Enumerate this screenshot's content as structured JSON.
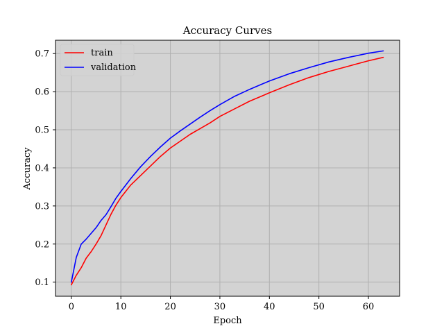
{
  "chart_data": {
    "type": "line",
    "title": "Accuracy Curves",
    "xlabel": "Epoch",
    "ylabel": "Accuracy",
    "xlim": [
      -3.2,
      66.3
    ],
    "ylim": [
      0.063,
      0.735
    ],
    "xticks": [
      0,
      10,
      20,
      30,
      40,
      50,
      60
    ],
    "yticks": [
      0.1,
      0.2,
      0.3,
      0.4,
      0.5,
      0.6,
      0.7
    ],
    "xtick_labels": [
      "0",
      "10",
      "20",
      "30",
      "40",
      "50",
      "60"
    ],
    "ytick_labels": [
      "0.1",
      "0.2",
      "0.3",
      "0.4",
      "0.5",
      "0.6",
      "0.7"
    ],
    "grid": true,
    "legend_position": "top-left",
    "background_color": "#d3d3d3",
    "series": [
      {
        "name": "train",
        "color": "#ff0000",
        "x": [
          0,
          1,
          2,
          3,
          4,
          5,
          6,
          7,
          8,
          9,
          10,
          12,
          14,
          16,
          18,
          20,
          22,
          24,
          26,
          28,
          30,
          33,
          36,
          40,
          44,
          48,
          52,
          56,
          60,
          63
        ],
        "values": [
          0.093,
          0.118,
          0.138,
          0.163,
          0.18,
          0.2,
          0.222,
          0.25,
          0.278,
          0.302,
          0.322,
          0.355,
          0.38,
          0.405,
          0.43,
          0.452,
          0.47,
          0.488,
          0.503,
          0.518,
          0.535,
          0.555,
          0.575,
          0.597,
          0.618,
          0.637,
          0.653,
          0.667,
          0.681,
          0.69
        ]
      },
      {
        "name": "validation",
        "color": "#0000ff",
        "x": [
          0,
          1,
          2,
          3,
          4,
          5,
          6,
          7,
          8,
          9,
          10,
          12,
          14,
          16,
          18,
          20,
          22,
          24,
          26,
          28,
          30,
          33,
          36,
          40,
          44,
          48,
          52,
          56,
          60,
          63
        ],
        "values": [
          0.1,
          0.165,
          0.2,
          0.213,
          0.228,
          0.243,
          0.262,
          0.277,
          0.298,
          0.32,
          0.338,
          0.372,
          0.403,
          0.43,
          0.455,
          0.478,
          0.497,
          0.515,
          0.533,
          0.55,
          0.566,
          0.588,
          0.606,
          0.628,
          0.647,
          0.663,
          0.678,
          0.69,
          0.701,
          0.707
        ]
      }
    ]
  }
}
